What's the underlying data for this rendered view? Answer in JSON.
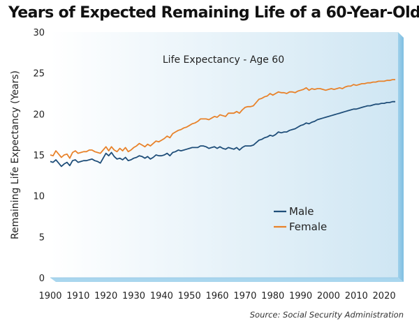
{
  "header": {
    "title": "Years of Expected Remaining Life of a 60-Year-Old"
  },
  "footer": {
    "source": "Source: Social Security Administration"
  },
  "colors": {
    "male": "#1f4e79",
    "female": "#e8822a",
    "plot_bg_left": "#ffffff",
    "plot_bg_right": "#cfe6f3"
  },
  "chart_data": {
    "type": "line",
    "title": "Life Expectancy - Age 60",
    "xlabel": "",
    "ylabel": "Remaining Life Expectancy (Years)",
    "xlim": [
      1900,
      2025
    ],
    "ylim": [
      0,
      30
    ],
    "x_ticks": [
      1900,
      1910,
      1920,
      1930,
      1940,
      1950,
      1960,
      1970,
      1980,
      1990,
      2000,
      2010,
      2020
    ],
    "y_ticks": [
      0,
      5,
      10,
      15,
      20,
      25,
      30
    ],
    "grid": false,
    "legend_position": "lower-right",
    "series": [
      {
        "name": "Male",
        "color": "#1f4e79",
        "points": [
          [
            1900,
            14.2
          ],
          [
            1901,
            14.1
          ],
          [
            1902,
            14.4
          ],
          [
            1903,
            14.0
          ],
          [
            1904,
            13.6
          ],
          [
            1905,
            13.9
          ],
          [
            1906,
            14.1
          ],
          [
            1907,
            13.7
          ],
          [
            1908,
            14.3
          ],
          [
            1909,
            14.4
          ],
          [
            1910,
            14.1
          ],
          [
            1911,
            14.2
          ],
          [
            1912,
            14.3
          ],
          [
            1913,
            14.3
          ],
          [
            1914,
            14.4
          ],
          [
            1915,
            14.5
          ],
          [
            1916,
            14.3
          ],
          [
            1917,
            14.2
          ],
          [
            1918,
            14.0
          ],
          [
            1919,
            14.6
          ],
          [
            1920,
            15.2
          ],
          [
            1921,
            14.9
          ],
          [
            1922,
            15.3
          ],
          [
            1923,
            14.8
          ],
          [
            1924,
            14.5
          ],
          [
            1925,
            14.6
          ],
          [
            1926,
            14.4
          ],
          [
            1927,
            14.7
          ],
          [
            1928,
            14.3
          ],
          [
            1929,
            14.4
          ],
          [
            1930,
            14.6
          ],
          [
            1931,
            14.7
          ],
          [
            1932,
            14.9
          ],
          [
            1933,
            14.8
          ],
          [
            1934,
            14.6
          ],
          [
            1935,
            14.8
          ],
          [
            1936,
            14.5
          ],
          [
            1937,
            14.7
          ],
          [
            1938,
            15.0
          ],
          [
            1939,
            14.9
          ],
          [
            1940,
            14.9
          ],
          [
            1941,
            15.0
          ],
          [
            1942,
            15.2
          ],
          [
            1943,
            14.9
          ],
          [
            1944,
            15.3
          ],
          [
            1945,
            15.4
          ],
          [
            1946,
            15.6
          ],
          [
            1947,
            15.5
          ],
          [
            1948,
            15.6
          ],
          [
            1949,
            15.7
          ],
          [
            1950,
            15.8
          ],
          [
            1951,
            15.9
          ],
          [
            1952,
            15.9
          ],
          [
            1953,
            15.9
          ],
          [
            1954,
            16.1
          ],
          [
            1955,
            16.1
          ],
          [
            1956,
            16.0
          ],
          [
            1957,
            15.8
          ],
          [
            1958,
            15.9
          ],
          [
            1959,
            16.0
          ],
          [
            1960,
            15.8
          ],
          [
            1961,
            16.0
          ],
          [
            1962,
            15.8
          ],
          [
            1963,
            15.7
          ],
          [
            1964,
            15.9
          ],
          [
            1965,
            15.8
          ],
          [
            1966,
            15.7
          ],
          [
            1967,
            15.9
          ],
          [
            1968,
            15.6
          ],
          [
            1969,
            15.9
          ],
          [
            1970,
            16.1
          ],
          [
            1971,
            16.1
          ],
          [
            1972,
            16.1
          ],
          [
            1973,
            16.2
          ],
          [
            1974,
            16.5
          ],
          [
            1975,
            16.8
          ],
          [
            1976,
            16.9
          ],
          [
            1977,
            17.1
          ],
          [
            1978,
            17.2
          ],
          [
            1979,
            17.4
          ],
          [
            1980,
            17.3
          ],
          [
            1981,
            17.5
          ],
          [
            1982,
            17.8
          ],
          [
            1983,
            17.7
          ],
          [
            1984,
            17.8
          ],
          [
            1985,
            17.8
          ],
          [
            1986,
            18.0
          ],
          [
            1987,
            18.1
          ],
          [
            1988,
            18.2
          ],
          [
            1989,
            18.4
          ],
          [
            1990,
            18.6
          ],
          [
            1991,
            18.7
          ],
          [
            1992,
            18.9
          ],
          [
            1993,
            18.8
          ],
          [
            1994,
            19.0
          ],
          [
            1995,
            19.1
          ],
          [
            1996,
            19.3
          ],
          [
            1997,
            19.4
          ],
          [
            1998,
            19.5
          ],
          [
            1999,
            19.6
          ],
          [
            2000,
            19.7
          ],
          [
            2001,
            19.8
          ],
          [
            2002,
            19.9
          ],
          [
            2003,
            20.0
          ],
          [
            2004,
            20.1
          ],
          [
            2005,
            20.2
          ],
          [
            2006,
            20.3
          ],
          [
            2007,
            20.4
          ],
          [
            2008,
            20.5
          ],
          [
            2009,
            20.6
          ],
          [
            2010,
            20.6
          ],
          [
            2011,
            20.7
          ],
          [
            2012,
            20.8
          ],
          [
            2013,
            20.9
          ],
          [
            2014,
            21.0
          ],
          [
            2015,
            21.0
          ],
          [
            2016,
            21.1
          ],
          [
            2017,
            21.2
          ],
          [
            2018,
            21.2
          ],
          [
            2019,
            21.3
          ],
          [
            2020,
            21.3
          ],
          [
            2021,
            21.4
          ],
          [
            2022,
            21.4
          ],
          [
            2023,
            21.5
          ],
          [
            2024,
            21.5
          ]
        ]
      },
      {
        "name": "Female",
        "color": "#e8822a",
        "points": [
          [
            1900,
            15.0
          ],
          [
            1901,
            14.9
          ],
          [
            1902,
            15.5
          ],
          [
            1903,
            15.1
          ],
          [
            1904,
            14.7
          ],
          [
            1905,
            15.0
          ],
          [
            1906,
            15.1
          ],
          [
            1907,
            14.6
          ],
          [
            1908,
            15.3
          ],
          [
            1909,
            15.5
          ],
          [
            1910,
            15.2
          ],
          [
            1911,
            15.3
          ],
          [
            1912,
            15.4
          ],
          [
            1913,
            15.4
          ],
          [
            1914,
            15.6
          ],
          [
            1915,
            15.6
          ],
          [
            1916,
            15.4
          ],
          [
            1917,
            15.3
          ],
          [
            1918,
            15.2
          ],
          [
            1919,
            15.6
          ],
          [
            1920,
            16.0
          ],
          [
            1921,
            15.5
          ],
          [
            1922,
            16.0
          ],
          [
            1923,
            15.6
          ],
          [
            1924,
            15.4
          ],
          [
            1925,
            15.8
          ],
          [
            1926,
            15.5
          ],
          [
            1927,
            15.9
          ],
          [
            1928,
            15.4
          ],
          [
            1929,
            15.6
          ],
          [
            1930,
            15.9
          ],
          [
            1931,
            16.1
          ],
          [
            1932,
            16.4
          ],
          [
            1933,
            16.2
          ],
          [
            1934,
            16.0
          ],
          [
            1935,
            16.3
          ],
          [
            1936,
            16.1
          ],
          [
            1937,
            16.4
          ],
          [
            1938,
            16.7
          ],
          [
            1939,
            16.6
          ],
          [
            1940,
            16.8
          ],
          [
            1941,
            17.0
          ],
          [
            1942,
            17.3
          ],
          [
            1943,
            17.1
          ],
          [
            1944,
            17.6
          ],
          [
            1945,
            17.8
          ],
          [
            1946,
            18.0
          ],
          [
            1947,
            18.1
          ],
          [
            1948,
            18.3
          ],
          [
            1949,
            18.4
          ],
          [
            1950,
            18.6
          ],
          [
            1951,
            18.8
          ],
          [
            1952,
            18.9
          ],
          [
            1953,
            19.1
          ],
          [
            1954,
            19.4
          ],
          [
            1955,
            19.4
          ],
          [
            1956,
            19.4
          ],
          [
            1957,
            19.3
          ],
          [
            1958,
            19.5
          ],
          [
            1959,
            19.7
          ],
          [
            1960,
            19.6
          ],
          [
            1961,
            19.9
          ],
          [
            1962,
            19.8
          ],
          [
            1963,
            19.7
          ],
          [
            1964,
            20.1
          ],
          [
            1965,
            20.1
          ],
          [
            1966,
            20.1
          ],
          [
            1967,
            20.3
          ],
          [
            1968,
            20.1
          ],
          [
            1969,
            20.5
          ],
          [
            1970,
            20.8
          ],
          [
            1971,
            20.9
          ],
          [
            1972,
            20.9
          ],
          [
            1973,
            21.0
          ],
          [
            1974,
            21.4
          ],
          [
            1975,
            21.8
          ],
          [
            1976,
            21.9
          ],
          [
            1977,
            22.1
          ],
          [
            1978,
            22.2
          ],
          [
            1979,
            22.5
          ],
          [
            1980,
            22.3
          ],
          [
            1981,
            22.5
          ],
          [
            1982,
            22.7
          ],
          [
            1983,
            22.6
          ],
          [
            1984,
            22.6
          ],
          [
            1985,
            22.5
          ],
          [
            1986,
            22.7
          ],
          [
            1987,
            22.7
          ],
          [
            1988,
            22.6
          ],
          [
            1989,
            22.8
          ],
          [
            1990,
            22.9
          ],
          [
            1991,
            23.0
          ],
          [
            1992,
            23.2
          ],
          [
            1993,
            22.9
          ],
          [
            1994,
            23.1
          ],
          [
            1995,
            23.0
          ],
          [
            1996,
            23.1
          ],
          [
            1997,
            23.1
          ],
          [
            1998,
            23.0
          ],
          [
            1999,
            22.9
          ],
          [
            2000,
            23.0
          ],
          [
            2001,
            23.1
          ],
          [
            2002,
            23.0
          ],
          [
            2003,
            23.1
          ],
          [
            2004,
            23.2
          ],
          [
            2005,
            23.1
          ],
          [
            2006,
            23.3
          ],
          [
            2007,
            23.4
          ],
          [
            2008,
            23.4
          ],
          [
            2009,
            23.6
          ],
          [
            2010,
            23.5
          ],
          [
            2011,
            23.6
          ],
          [
            2012,
            23.7
          ],
          [
            2013,
            23.7
          ],
          [
            2014,
            23.8
          ],
          [
            2015,
            23.8
          ],
          [
            2016,
            23.9
          ],
          [
            2017,
            23.9
          ],
          [
            2018,
            24.0
          ],
          [
            2019,
            24.0
          ],
          [
            2020,
            24.0
          ],
          [
            2021,
            24.1
          ],
          [
            2022,
            24.1
          ],
          [
            2023,
            24.2
          ],
          [
            2024,
            24.2
          ]
        ]
      }
    ]
  }
}
